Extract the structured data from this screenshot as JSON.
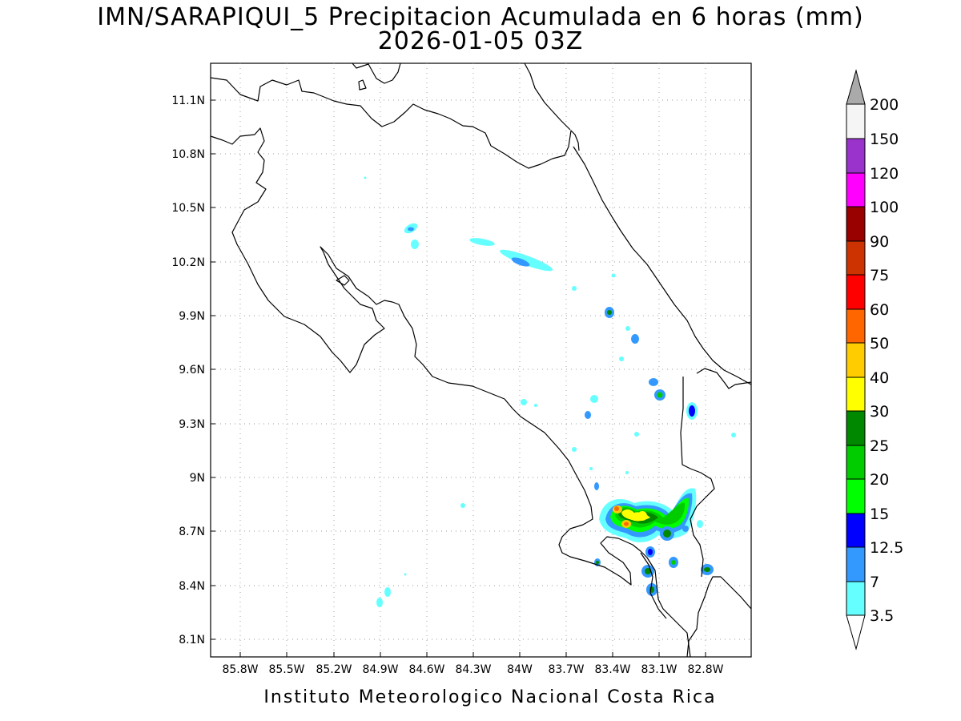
{
  "title": {
    "line1": "IMN/SARAPIQUI_5 Precipitacion Acumulada en 6 horas (mm)",
    "line2": "2026-01-05 03Z"
  },
  "footer": "Instituto Meteorologico Nacional Costa Rica",
  "map": {
    "lon_range": [
      -86.0,
      -82.6
    ],
    "lat_range": [
      8.0,
      11.3
    ],
    "lon_ticks": [
      "85.8W",
      "85.5W",
      "85.2W",
      "84.9W",
      "84.6W",
      "84.3W",
      "84W",
      "83.7W",
      "83.4W",
      "83.1W",
      "82.8W"
    ],
    "lat_ticks": [
      "8.1N",
      "8.4N",
      "8.7N",
      "9N",
      "9.3N",
      "9.6N",
      "9.9N",
      "10.2N",
      "10.5N",
      "10.8N",
      "11.1N"
    ],
    "grid": "dotted"
  },
  "colorbar": {
    "labels": [
      "3.5",
      "7",
      "12.5",
      "15",
      "20",
      "25",
      "30",
      "40",
      "50",
      "60",
      "75",
      "90",
      "100",
      "120",
      "150",
      "200"
    ],
    "colors": [
      "#66ffff",
      "#3399ff",
      "#0000ff",
      "#00ff00",
      "#00cc00",
      "#008800",
      "#ffff00",
      "#ffcc00",
      "#ff6600",
      "#ff0000",
      "#cc3300",
      "#990000",
      "#ff00ff",
      "#9933cc",
      "#f5f5f5",
      "#aaaaaa"
    ]
  }
}
